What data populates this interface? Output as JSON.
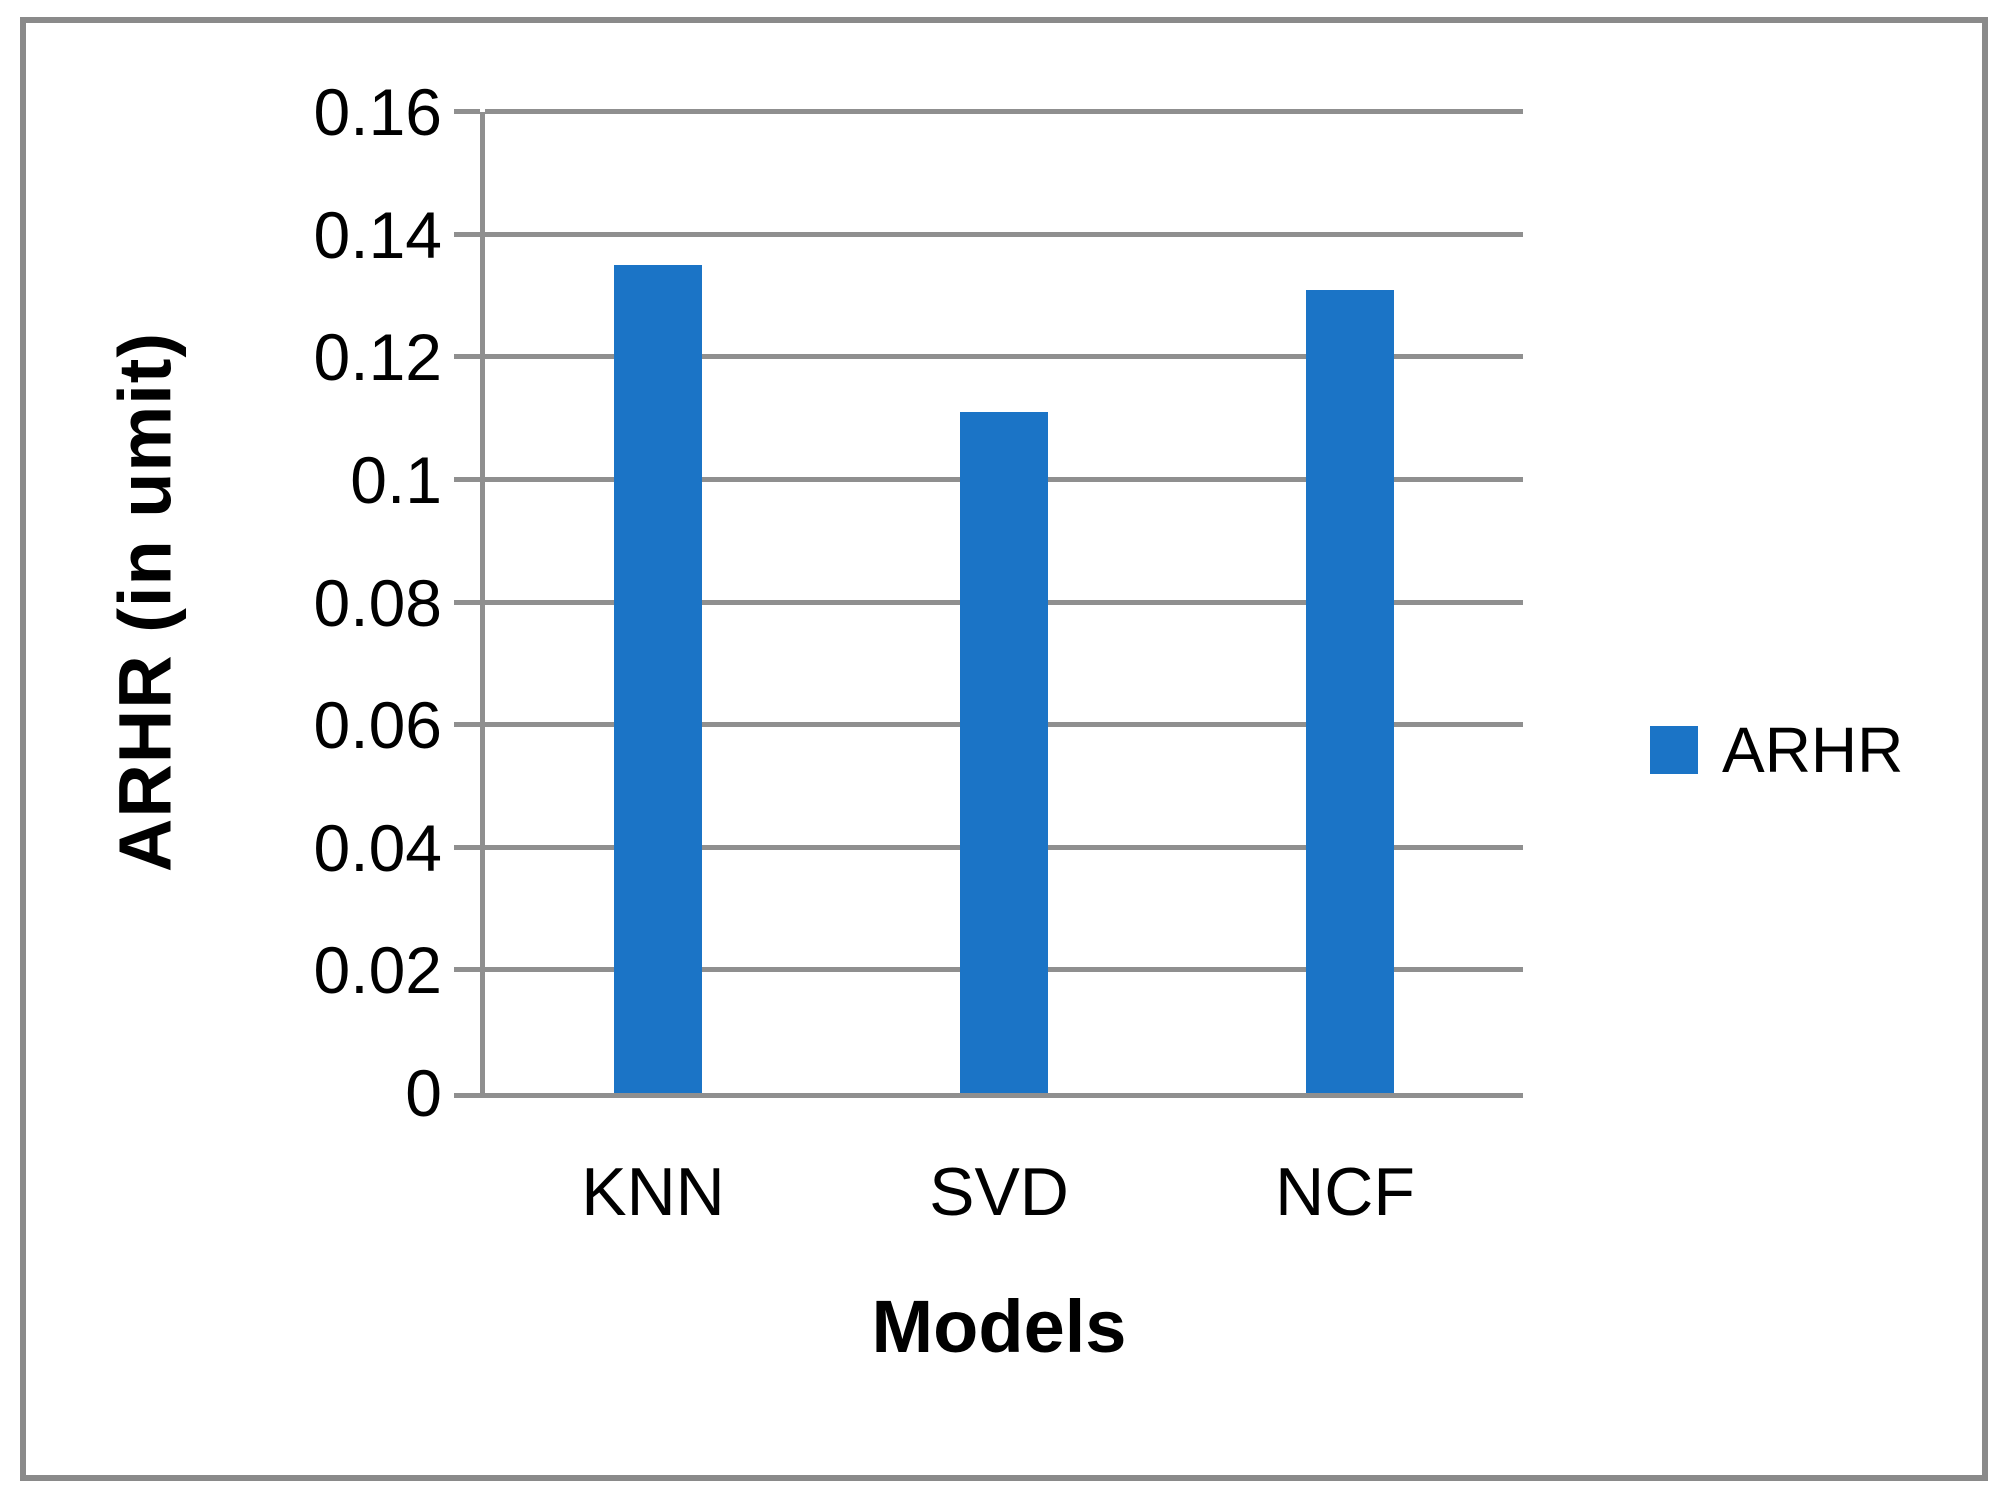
{
  "chart_data": {
    "type": "bar",
    "categories": [
      "KNN",
      "SVD",
      "NCF"
    ],
    "series": [
      {
        "name": "ARHR",
        "values": [
          0.135,
          0.111,
          0.131
        ]
      }
    ],
    "title": "",
    "xlabel": "Models",
    "ylabel": "ARHR (in umit)",
    "ylim": [
      0,
      0.16
    ],
    "ytick_step": 0.02,
    "yticks": [
      "0",
      "0.02",
      "0.04",
      "0.06",
      "0.08",
      "0.1",
      "0.12",
      "0.14",
      "0.16"
    ],
    "grid": true,
    "legend_position": "right",
    "legend_entries": [
      "ARHR"
    ],
    "colors": {
      "bar": "#1B74C6",
      "gridline": "#8F8F8F",
      "frame_border": "#8A8A8A",
      "text": "#000000"
    }
  }
}
